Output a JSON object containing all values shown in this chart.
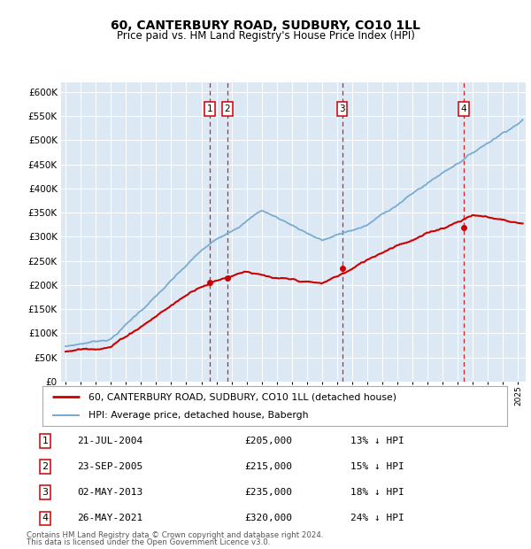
{
  "title": "60, CANTERBURY ROAD, SUDBURY, CO10 1LL",
  "subtitle": "Price paid vs. HM Land Registry's House Price Index (HPI)",
  "ylim": [
    0,
    620000
  ],
  "yticks": [
    0,
    50000,
    100000,
    150000,
    200000,
    250000,
    300000,
    350000,
    400000,
    450000,
    500000,
    550000,
    600000
  ],
  "xlim_start": 1994.7,
  "xlim_end": 2025.5,
  "plot_bg": "#dce9f5",
  "transactions": [
    {
      "num": 1,
      "date": "21-JUL-2004",
      "year": 2004.55,
      "price": 205000,
      "pct": "13%",
      "label": "1"
    },
    {
      "num": 2,
      "date": "23-SEP-2005",
      "year": 2005.73,
      "price": 215000,
      "pct": "15%",
      "label": "2"
    },
    {
      "num": 3,
      "date": "02-MAY-2013",
      "year": 2013.33,
      "price": 235000,
      "pct": "18%",
      "label": "3"
    },
    {
      "num": 4,
      "date": "26-MAY-2021",
      "year": 2021.4,
      "price": 320000,
      "pct": "24%",
      "label": "4"
    }
  ],
  "legend_line1": "60, CANTERBURY ROAD, SUDBURY, CO10 1LL (detached house)",
  "legend_line2": "HPI: Average price, detached house, Babergh",
  "footer1": "Contains HM Land Registry data © Crown copyright and database right 2024.",
  "footer2": "This data is licensed under the Open Government Licence v3.0.",
  "red_color": "#cc0000",
  "blue_color": "#7aabcf",
  "table_rows": [
    [
      "1",
      "21-JUL-2004",
      "£205,000",
      "13% ↓ HPI"
    ],
    [
      "2",
      "23-SEP-2005",
      "£215,000",
      "15% ↓ HPI"
    ],
    [
      "3",
      "02-MAY-2013",
      "£235,000",
      "18% ↓ HPI"
    ],
    [
      "4",
      "26-MAY-2021",
      "£320,000",
      "24% ↓ HPI"
    ]
  ]
}
